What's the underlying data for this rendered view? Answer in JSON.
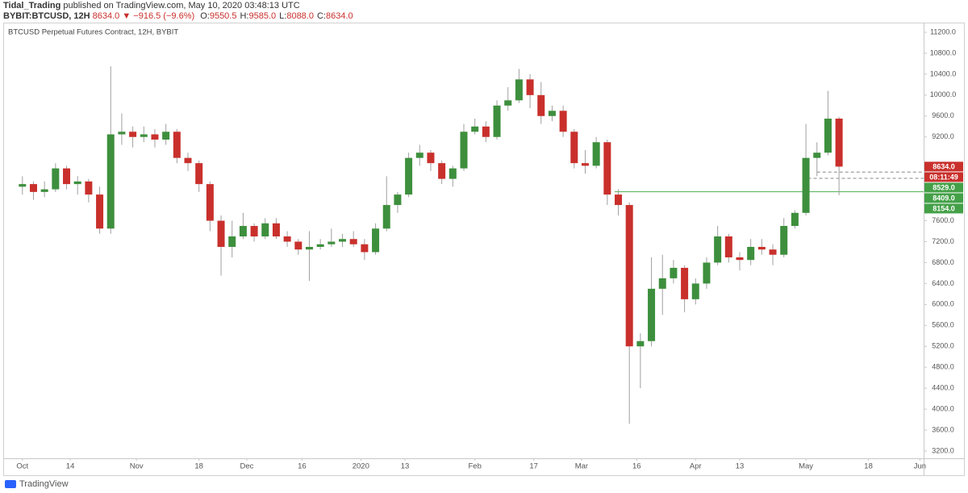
{
  "header": {
    "author": "Tidal_Trading",
    "published": "published on TradingView.com, May 10, 2020 03:48:13 UTC",
    "symbol": "BYBIT:BTCUSD, 12H",
    "last": "8634.0",
    "change": "▼ −916.5 (−9.6%)",
    "ohlc": [
      {
        "label": "O:",
        "value": "9550.5"
      },
      {
        "label": "H:",
        "value": "9585.0"
      },
      {
        "label": "L:",
        "value": "8088.0"
      },
      {
        "label": "C:",
        "value": "8634.0"
      }
    ]
  },
  "chart_data": {
    "type": "candlestick",
    "title": "BTCUSD Perpetual Futures Contract, 12H, BYBIT",
    "up_color": "#3d8f3d",
    "down_color": "#c9302c",
    "wick_color": "#a0a0a0",
    "grid": false,
    "xlim": [
      "2019-09-26",
      "2020-06-02"
    ],
    "xticks": [
      {
        "value": "2019-10-01",
        "label": "Oct"
      },
      {
        "value": "2019-10-14",
        "label": "14"
      },
      {
        "value": "2019-11-01",
        "label": "Nov"
      },
      {
        "value": "2019-11-18",
        "label": "18"
      },
      {
        "value": "2019-12-01",
        "label": "Dec"
      },
      {
        "value": "2019-12-16",
        "label": "16"
      },
      {
        "value": "2020-01-01",
        "label": "2020"
      },
      {
        "value": "2020-01-13",
        "label": "13"
      },
      {
        "value": "2020-02-01",
        "label": "Feb"
      },
      {
        "value": "2020-02-17",
        "label": "17"
      },
      {
        "value": "2020-03-01",
        "label": "Mar"
      },
      {
        "value": "2020-03-16",
        "label": "16"
      },
      {
        "value": "2020-04-01",
        "label": "Apr"
      },
      {
        "value": "2020-04-13",
        "label": "13"
      },
      {
        "value": "2020-05-01",
        "label": "May"
      },
      {
        "value": "2020-05-18",
        "label": "18"
      },
      {
        "value": "2020-06-01",
        "label": "Jun"
      }
    ],
    "ylim": [
      3061,
      11385
    ],
    "yticks": [
      {
        "value": 11200,
        "label": "11200.0"
      },
      {
        "value": 10800,
        "label": "10800.0"
      },
      {
        "value": 10400,
        "label": "10400.0"
      },
      {
        "value": 10000,
        "label": "10000.0"
      },
      {
        "value": 9600,
        "label": "9600.0"
      },
      {
        "value": 9200,
        "label": "9200.0"
      },
      {
        "value": 7600,
        "label": "7600.0"
      },
      {
        "value": 7200,
        "label": "7200.0"
      },
      {
        "value": 6800,
        "label": "6800.0"
      },
      {
        "value": 6400,
        "label": "6400.0"
      },
      {
        "value": 6000,
        "label": "6000.0"
      },
      {
        "value": 5600,
        "label": "5600.0"
      },
      {
        "value": 5200,
        "label": "5200.0"
      },
      {
        "value": 4800,
        "label": "4800.0"
      },
      {
        "value": 4400,
        "label": "4400.0"
      },
      {
        "value": 4000,
        "label": "4000.0"
      },
      {
        "value": 3600,
        "label": "3600.0"
      },
      {
        "value": 3200,
        "label": "3200.0"
      }
    ],
    "last_price": {
      "value": 8634,
      "label": "8634.0",
      "countdown": "08:11:49"
    },
    "levels": [
      {
        "value": 8529,
        "label": "8529.0",
        "style": "dashed",
        "from": "2020-05-04"
      },
      {
        "value": 8409,
        "label": "8409.0",
        "style": "dashed",
        "from": "2020-04-30"
      },
      {
        "value": 8154,
        "label": "8154.0",
        "style": "solid",
        "from": "2020-03-10"
      }
    ],
    "candles": [
      {
        "date": "2019-10-01",
        "open": 8250,
        "high": 8450,
        "low": 8100,
        "close": 8300
      },
      {
        "date": "2019-10-04",
        "open": 8300,
        "high": 8350,
        "low": 8000,
        "close": 8150
      },
      {
        "date": "2019-10-07",
        "open": 8150,
        "high": 8350,
        "low": 8050,
        "close": 8200
      },
      {
        "date": "2019-10-10",
        "open": 8200,
        "high": 8700,
        "low": 8150,
        "close": 8600
      },
      {
        "date": "2019-10-13",
        "open": 8600,
        "high": 8650,
        "low": 8200,
        "close": 8300
      },
      {
        "date": "2019-10-16",
        "open": 8300,
        "high": 8450,
        "low": 8100,
        "close": 8350
      },
      {
        "date": "2019-10-19",
        "open": 8350,
        "high": 8400,
        "low": 7950,
        "close": 8100
      },
      {
        "date": "2019-10-22",
        "open": 8100,
        "high": 8250,
        "low": 7350,
        "close": 7450
      },
      {
        "date": "2019-10-25",
        "open": 7450,
        "high": 10550,
        "low": 7350,
        "close": 9250
      },
      {
        "date": "2019-10-28",
        "open": 9250,
        "high": 9650,
        "low": 9050,
        "close": 9300
      },
      {
        "date": "2019-10-31",
        "open": 9300,
        "high": 9400,
        "low": 9000,
        "close": 9200
      },
      {
        "date": "2019-11-03",
        "open": 9200,
        "high": 9400,
        "low": 9100,
        "close": 9250
      },
      {
        "date": "2019-11-06",
        "open": 9250,
        "high": 9350,
        "low": 9000,
        "close": 9150
      },
      {
        "date": "2019-11-09",
        "open": 9150,
        "high": 9450,
        "low": 9050,
        "close": 9300
      },
      {
        "date": "2019-11-12",
        "open": 9300,
        "high": 9350,
        "low": 8700,
        "close": 8800
      },
      {
        "date": "2019-11-15",
        "open": 8800,
        "high": 8900,
        "low": 8550,
        "close": 8700
      },
      {
        "date": "2019-11-18",
        "open": 8700,
        "high": 8750,
        "low": 8150,
        "close": 8300
      },
      {
        "date": "2019-11-21",
        "open": 8300,
        "high": 8350,
        "low": 7400,
        "close": 7600
      },
      {
        "date": "2019-11-24",
        "open": 7600,
        "high": 7700,
        "low": 6550,
        "close": 7100
      },
      {
        "date": "2019-11-27",
        "open": 7100,
        "high": 7600,
        "low": 6900,
        "close": 7300
      },
      {
        "date": "2019-11-30",
        "open": 7300,
        "high": 7750,
        "low": 7250,
        "close": 7500
      },
      {
        "date": "2019-12-03",
        "open": 7500,
        "high": 7550,
        "low": 7200,
        "close": 7300
      },
      {
        "date": "2019-12-06",
        "open": 7300,
        "high": 7650,
        "low": 7250,
        "close": 7550
      },
      {
        "date": "2019-12-09",
        "open": 7550,
        "high": 7650,
        "low": 7250,
        "close": 7300
      },
      {
        "date": "2019-12-12",
        "open": 7300,
        "high": 7400,
        "low": 7100,
        "close": 7200
      },
      {
        "date": "2019-12-15",
        "open": 7200,
        "high": 7250,
        "low": 6950,
        "close": 7050
      },
      {
        "date": "2019-12-18",
        "open": 7050,
        "high": 7400,
        "low": 6450,
        "close": 7100
      },
      {
        "date": "2019-12-21",
        "open": 7100,
        "high": 7250,
        "low": 7050,
        "close": 7150
      },
      {
        "date": "2019-12-24",
        "open": 7150,
        "high": 7450,
        "low": 7100,
        "close": 7200
      },
      {
        "date": "2019-12-27",
        "open": 7200,
        "high": 7350,
        "low": 7100,
        "close": 7250
      },
      {
        "date": "2019-12-30",
        "open": 7250,
        "high": 7400,
        "low": 7100,
        "close": 7150
      },
      {
        "date": "2020-01-02",
        "open": 7150,
        "high": 7250,
        "low": 6850,
        "close": 7000
      },
      {
        "date": "2020-01-05",
        "open": 7000,
        "high": 7550,
        "low": 6950,
        "close": 7450
      },
      {
        "date": "2020-01-08",
        "open": 7450,
        "high": 8450,
        "low": 7400,
        "close": 7900
      },
      {
        "date": "2020-01-11",
        "open": 7900,
        "high": 8150,
        "low": 7750,
        "close": 8100
      },
      {
        "date": "2020-01-14",
        "open": 8100,
        "high": 8900,
        "low": 8050,
        "close": 8800
      },
      {
        "date": "2020-01-17",
        "open": 8800,
        "high": 9050,
        "low": 8650,
        "close": 8900
      },
      {
        "date": "2020-01-20",
        "open": 8900,
        "high": 8950,
        "low": 8550,
        "close": 8700
      },
      {
        "date": "2020-01-23",
        "open": 8700,
        "high": 8750,
        "low": 8300,
        "close": 8400
      },
      {
        "date": "2020-01-26",
        "open": 8400,
        "high": 8650,
        "low": 8250,
        "close": 8600
      },
      {
        "date": "2020-01-29",
        "open": 8600,
        "high": 9450,
        "low": 8550,
        "close": 9300
      },
      {
        "date": "2020-02-01",
        "open": 9300,
        "high": 9550,
        "low": 9250,
        "close": 9400
      },
      {
        "date": "2020-02-04",
        "open": 9400,
        "high": 9500,
        "low": 9100,
        "close": 9200
      },
      {
        "date": "2020-02-07",
        "open": 9200,
        "high": 9900,
        "low": 9150,
        "close": 9800
      },
      {
        "date": "2020-02-10",
        "open": 9800,
        "high": 10150,
        "low": 9700,
        "close": 9900
      },
      {
        "date": "2020-02-13",
        "open": 9900,
        "high": 10500,
        "low": 9850,
        "close": 10300
      },
      {
        "date": "2020-02-16",
        "open": 10300,
        "high": 10400,
        "low": 9750,
        "close": 10000
      },
      {
        "date": "2020-02-19",
        "open": 10000,
        "high": 10250,
        "low": 9450,
        "close": 9600
      },
      {
        "date": "2020-02-22",
        "open": 9600,
        "high": 9800,
        "low": 9500,
        "close": 9700
      },
      {
        "date": "2020-02-25",
        "open": 9700,
        "high": 9800,
        "low": 9200,
        "close": 9300
      },
      {
        "date": "2020-02-28",
        "open": 9300,
        "high": 9350,
        "low": 8600,
        "close": 8700
      },
      {
        "date": "2020-03-02",
        "open": 8700,
        "high": 8950,
        "low": 8500,
        "close": 8650
      },
      {
        "date": "2020-03-05",
        "open": 8650,
        "high": 9200,
        "low": 8600,
        "close": 9100
      },
      {
        "date": "2020-03-08",
        "open": 9100,
        "high": 9150,
        "low": 7900,
        "close": 8100
      },
      {
        "date": "2020-03-11",
        "open": 8100,
        "high": 8200,
        "low": 7700,
        "close": 7900
      },
      {
        "date": "2020-03-14",
        "open": 7900,
        "high": 7950,
        "low": 3720,
        "close": 5200
      },
      {
        "date": "2020-03-17",
        "open": 5200,
        "high": 5450,
        "low": 4400,
        "close": 5300
      },
      {
        "date": "2020-03-20",
        "open": 5300,
        "high": 6900,
        "low": 5200,
        "close": 6300
      },
      {
        "date": "2020-03-23",
        "open": 6300,
        "high": 6950,
        "low": 5800,
        "close": 6500
      },
      {
        "date": "2020-03-26",
        "open": 6500,
        "high": 6850,
        "low": 6400,
        "close": 6700
      },
      {
        "date": "2020-03-29",
        "open": 6700,
        "high": 6750,
        "low": 5850,
        "close": 6100
      },
      {
        "date": "2020-04-01",
        "open": 6100,
        "high": 6500,
        "low": 6000,
        "close": 6400
      },
      {
        "date": "2020-04-04",
        "open": 6400,
        "high": 6900,
        "low": 6300,
        "close": 6800
      },
      {
        "date": "2020-04-07",
        "open": 6800,
        "high": 7500,
        "low": 6750,
        "close": 7300
      },
      {
        "date": "2020-04-10",
        "open": 7300,
        "high": 7350,
        "low": 6800,
        "close": 6900
      },
      {
        "date": "2020-04-13",
        "open": 6900,
        "high": 7000,
        "low": 6650,
        "close": 6850
      },
      {
        "date": "2020-04-16",
        "open": 6850,
        "high": 7250,
        "low": 6750,
        "close": 7100
      },
      {
        "date": "2020-04-19",
        "open": 7100,
        "high": 7250,
        "low": 6950,
        "close": 7050
      },
      {
        "date": "2020-04-22",
        "open": 7050,
        "high": 7150,
        "low": 6750,
        "close": 6950
      },
      {
        "date": "2020-04-25",
        "open": 6950,
        "high": 7650,
        "low": 6900,
        "close": 7500
      },
      {
        "date": "2020-04-28",
        "open": 7500,
        "high": 7800,
        "low": 7450,
        "close": 7750
      },
      {
        "date": "2020-05-01",
        "open": 7750,
        "high": 9450,
        "low": 7700,
        "close": 8800
      },
      {
        "date": "2020-05-04",
        "open": 8800,
        "high": 9100,
        "low": 8450,
        "close": 8900
      },
      {
        "date": "2020-05-07",
        "open": 8900,
        "high": 10080,
        "low": 8850,
        "close": 9550
      },
      {
        "date": "2020-05-10",
        "open": 9550.5,
        "high": 9585,
        "low": 8088,
        "close": 8634
      }
    ]
  },
  "footer": {
    "brand": "TradingView"
  }
}
